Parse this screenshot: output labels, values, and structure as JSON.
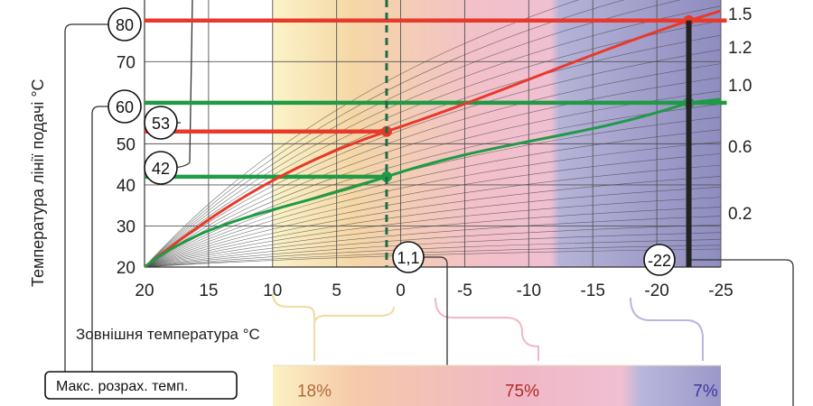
{
  "chart_data": {
    "type": "line",
    "xlabel": "Зовнішня температура °C",
    "ylabel": "Температура лінії подачі °C",
    "x_ticks": [
      "20",
      "15",
      "10",
      "5",
      "0",
      "-5",
      "-10",
      "-15",
      "-20",
      "-25"
    ],
    "y_ticks": [
      "20",
      "30",
      "40",
      "50",
      "60",
      "70",
      "80"
    ],
    "xlim": [
      20,
      -25
    ],
    "ylim": [
      20,
      85
    ],
    "heating_curve_labels": [
      "1.5",
      "1.2",
      "1.0",
      "0.6",
      "0.2"
    ],
    "series": [
      {
        "color": "#e8392b",
        "x": [
          20,
          1.1,
          -22.5
        ],
        "y": [
          20,
          53,
          80
        ]
      },
      {
        "color": "#1f9a45",
        "x": [
          20,
          1.1,
          -22.5
        ],
        "y": [
          20,
          42,
          60
        ]
      }
    ],
    "horizontal_lines": [
      {
        "y": 80,
        "color": "#e8392b"
      },
      {
        "y": 60,
        "color": "#1f9a45"
      },
      {
        "y": 53,
        "color": "#e8392b"
      },
      {
        "y": 42,
        "color": "#1f9a45"
      }
    ],
    "point_labels": [
      "80",
      "60",
      "53",
      "42"
    ],
    "vertical_markers": [
      {
        "x": 1.1,
        "label": "1,1",
        "style": "dashed",
        "color": "#1f6b45"
      },
      {
        "x": -22.5,
        "label": "-22",
        "style": "solid",
        "color": "#222222"
      }
    ],
    "legend_box": "Макс. розрах. темп.",
    "zones": [
      {
        "from": 10,
        "to": -10,
        "percent": "18%",
        "color": "#f3e4a3"
      },
      {
        "from": -10,
        "to": -22.5,
        "percent": "75%",
        "color": "#e6c8d4"
      },
      {
        "from": -22.5,
        "to": -25,
        "percent": "7%",
        "color": "#a9a8cc"
      }
    ],
    "accent_colors": {
      "red": "#e8392b",
      "green": "#1f9a45",
      "zone_yellow": "#f5e7a8",
      "zone_pink": "#efbfd0",
      "zone_purple": "#a6a3c8"
    }
  }
}
